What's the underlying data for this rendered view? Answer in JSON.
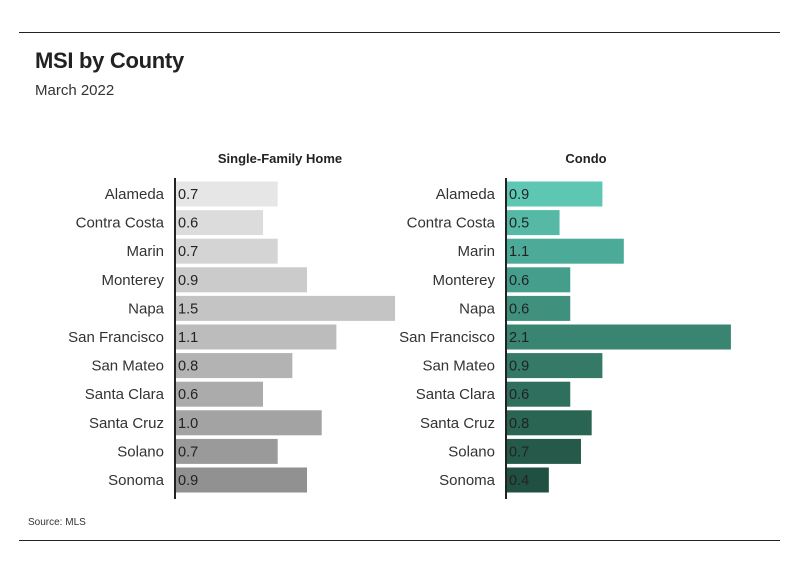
{
  "header": {
    "title": "MSI by County",
    "subtitle": "March 2022"
  },
  "footer": {
    "source": "Source: MLS"
  },
  "chart_data": [
    {
      "type": "bar",
      "orientation": "horizontal",
      "title": "Single-Family Home",
      "categories": [
        "Alameda",
        "Contra Costa",
        "Marin",
        "Monterey",
        "Napa",
        "San Francisco",
        "San Mateo",
        "Santa Clara",
        "Santa Cruz",
        "Solano",
        "Sonoma"
      ],
      "values": [
        0.7,
        0.6,
        0.7,
        0.9,
        1.5,
        1.1,
        0.8,
        0.6,
        1.0,
        0.7,
        0.9
      ],
      "value_labels": [
        "0.7",
        "0.6",
        "0.7",
        "0.9",
        "1.5",
        "1.1",
        "0.8",
        "0.6",
        "1.0",
        "0.7",
        "0.9"
      ],
      "colors": [
        "#e6e6e6",
        "#dcdcdc",
        "#d4d4d4",
        "#cbcbcb",
        "#c4c4c4",
        "#bcbcbc",
        "#b3b3b3",
        "#ababab",
        "#a3a3a3",
        "#9a9a9a",
        "#919191"
      ],
      "xlim": [
        0,
        1.5
      ],
      "grid": false
    },
    {
      "type": "bar",
      "orientation": "horizontal",
      "title": "Condo",
      "categories": [
        "Alameda",
        "Contra Costa",
        "Marin",
        "Monterey",
        "Napa",
        "San Francisco",
        "San Mateo",
        "Santa Clara",
        "Santa Cruz",
        "Solano",
        "Sonoma"
      ],
      "values": [
        0.9,
        0.5,
        1.1,
        0.6,
        0.6,
        2.1,
        0.9,
        0.6,
        0.8,
        0.7,
        0.4
      ],
      "value_labels": [
        "0.9",
        "0.5",
        "1.1",
        "0.6",
        "0.6",
        "2.1",
        "0.9",
        "0.6",
        "0.8",
        "0.7",
        "0.4"
      ],
      "colors": [
        "#5ec7b4",
        "#55b9a6",
        "#4cab98",
        "#459e8b",
        "#3f917e",
        "#398572",
        "#347a67",
        "#2f6f5d",
        "#2a6453",
        "#255a4a",
        "#205041"
      ],
      "xlim": [
        0,
        2.1
      ],
      "grid": false
    }
  ]
}
